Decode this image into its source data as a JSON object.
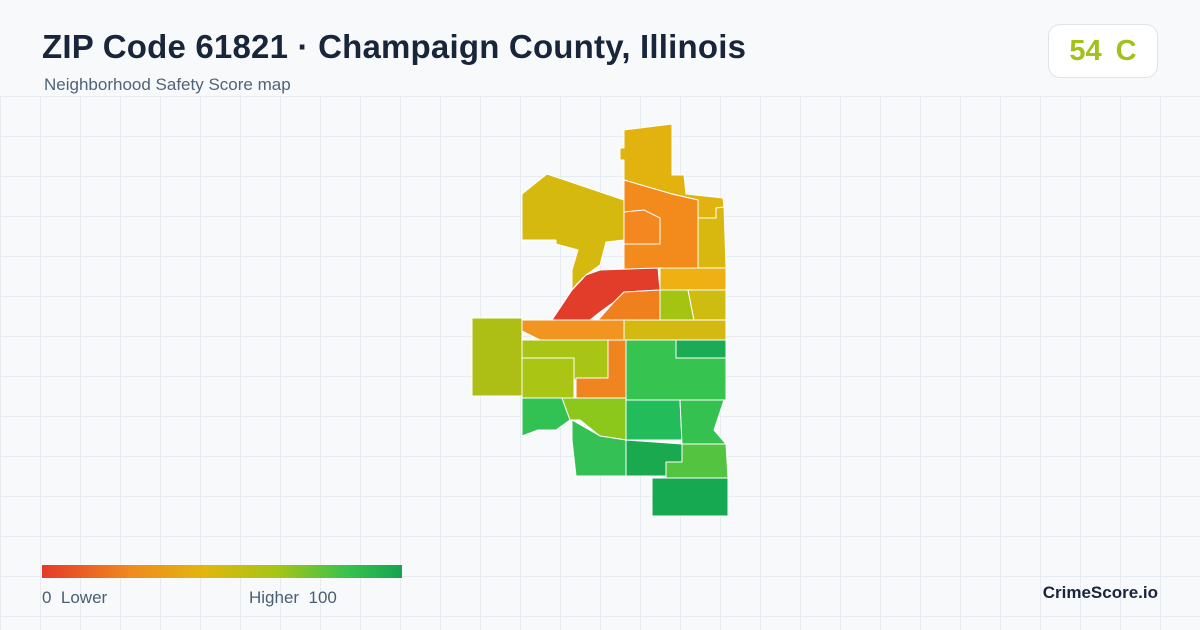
{
  "header": {
    "title": "ZIP Code 61821 · Champaign County, Illinois",
    "subtitle": "Neighborhood Safety Score map"
  },
  "score_badge": {
    "score": "54",
    "grade": "C",
    "color": "#a0c21a"
  },
  "legend": {
    "low_label": "0  Lower",
    "high_label": "Higher  100",
    "colors": [
      "#e63a2a",
      "#f08b1e",
      "#e2b60e",
      "#a7c515",
      "#37c24e",
      "#16a34f"
    ]
  },
  "brand": "CrimeScore.io"
}
